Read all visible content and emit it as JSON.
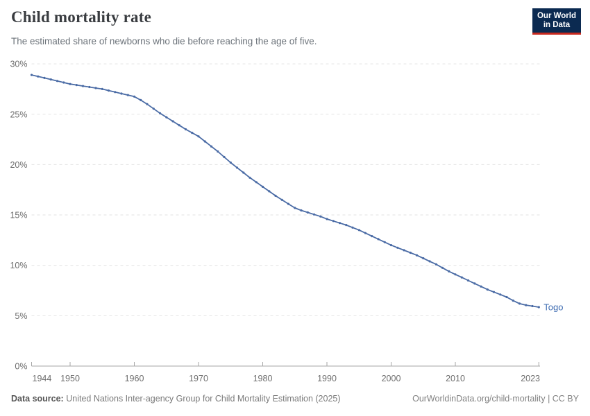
{
  "header": {
    "title": "Child mortality rate",
    "subtitle": "The estimated share of newborns who die before reaching the age of five.",
    "logo": {
      "line1": "Our World",
      "line2": "in Data"
    }
  },
  "chart_data": {
    "type": "line",
    "title": "Child mortality rate",
    "entity": "Togo",
    "xlabel": "",
    "ylabel": "",
    "unit": "%",
    "grid": "horizontal-dashed",
    "legend_position": "end-of-line",
    "xlim": [
      1944,
      2023
    ],
    "ylim": [
      0,
      30
    ],
    "x_ticks": [
      1944,
      1950,
      1960,
      1970,
      1980,
      1990,
      2000,
      2010,
      2023
    ],
    "y_ticks": [
      0,
      5,
      10,
      15,
      20,
      25,
      30
    ],
    "y_tick_suffix": "%",
    "x": [
      1944,
      1945,
      1946,
      1947,
      1948,
      1949,
      1950,
      1951,
      1952,
      1953,
      1954,
      1955,
      1956,
      1957,
      1958,
      1959,
      1960,
      1961,
      1962,
      1963,
      1964,
      1965,
      1966,
      1967,
      1968,
      1969,
      1970,
      1971,
      1972,
      1973,
      1974,
      1975,
      1976,
      1977,
      1978,
      1979,
      1980,
      1981,
      1982,
      1983,
      1984,
      1985,
      1986,
      1987,
      1988,
      1989,
      1990,
      1991,
      1992,
      1993,
      1994,
      1995,
      1996,
      1997,
      1998,
      1999,
      2000,
      2001,
      2002,
      2003,
      2004,
      2005,
      2006,
      2007,
      2008,
      2009,
      2010,
      2011,
      2012,
      2013,
      2014,
      2015,
      2016,
      2017,
      2018,
      2019,
      2020,
      2021,
      2022,
      2023
    ],
    "series": [
      {
        "name": "Togo",
        "color": "#4a6ba5",
        "label_color": "#3e6cb2",
        "values": [
          28.9,
          28.75,
          28.6,
          28.45,
          28.3,
          28.15,
          28.0,
          27.9,
          27.8,
          27.7,
          27.6,
          27.5,
          27.35,
          27.2,
          27.05,
          26.9,
          26.75,
          26.4,
          26.0,
          25.55,
          25.1,
          24.7,
          24.3,
          23.9,
          23.5,
          23.15,
          22.8,
          22.3,
          21.8,
          21.3,
          20.75,
          20.2,
          19.7,
          19.2,
          18.7,
          18.25,
          17.8,
          17.35,
          16.9,
          16.5,
          16.1,
          15.7,
          15.45,
          15.25,
          15.05,
          14.85,
          14.6,
          14.4,
          14.2,
          14.0,
          13.75,
          13.5,
          13.2,
          12.9,
          12.6,
          12.3,
          12.0,
          11.75,
          11.5,
          11.25,
          11.0,
          10.7,
          10.4,
          10.1,
          9.75,
          9.4,
          9.1,
          8.8,
          8.5,
          8.2,
          7.9,
          7.6,
          7.35,
          7.1,
          6.85,
          6.5,
          6.2,
          6.05,
          5.95,
          5.85
        ]
      }
    ]
  },
  "footer": {
    "source_label": "Data source:",
    "source_text": "United Nations Inter-agency Group for Child Mortality Estimation (2025)",
    "link_text": "OurWorldinData.org/child-mortality | CC BY"
  },
  "colors": {
    "line": "#4a6ba5",
    "entity_label": "#3e6cb2",
    "logo_bg": "#0b2a51",
    "logo_accent": "#c7291f",
    "axis_text": "#6d6d6d",
    "gridline": "#e2e2e2",
    "axis_line": "#a6a6a6"
  }
}
